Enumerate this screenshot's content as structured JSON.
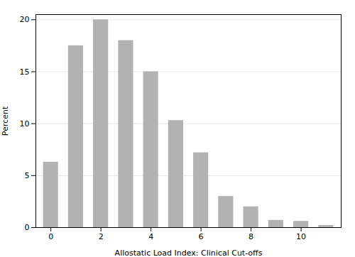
{
  "chart_data": {
    "type": "bar",
    "categories": [
      0,
      1,
      2,
      3,
      4,
      5,
      6,
      7,
      8,
      9,
      10,
      11
    ],
    "values": [
      6.3,
      17.5,
      20.0,
      18.0,
      15.0,
      10.3,
      7.2,
      3.0,
      2.0,
      0.7,
      0.6,
      0.2
    ],
    "color": "#b2b2b2",
    "xlabel": "Allostatic Load Index: Clinical Cut-offs",
    "ylabel": "Percent",
    "xlim": [
      -0.6,
      11.6
    ],
    "ylim": [
      0,
      20.5
    ],
    "xticks": [
      0,
      2,
      4,
      6,
      8,
      10
    ],
    "yticks": [
      0,
      5,
      10,
      15,
      20
    ],
    "grid": true
  }
}
